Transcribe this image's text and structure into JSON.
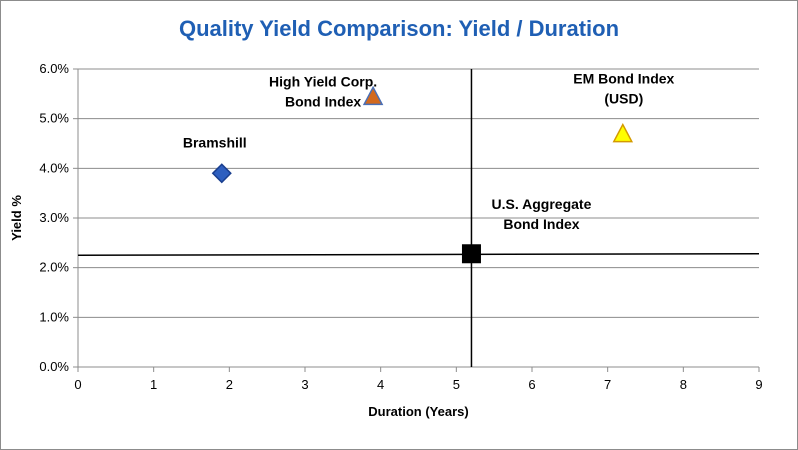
{
  "chart_data": {
    "type": "scatter",
    "title": "Quality Yield Comparison: Yield / Duration",
    "xlabel": "Duration (Years)",
    "ylabel": "Yield %",
    "xlim": [
      0,
      9
    ],
    "ylim": [
      0,
      6
    ],
    "x_ticks": [
      "0",
      "1",
      "2",
      "3",
      "4",
      "5",
      "6",
      "7",
      "8",
      "9"
    ],
    "y_ticks": [
      "0.0%",
      "1.0%",
      "2.0%",
      "3.0%",
      "4.0%",
      "5.0%",
      "6.0%"
    ],
    "grid": "horizontal",
    "reference_lines": {
      "vertical_x": 5.2,
      "horizontal_y": [
        2.25,
        2.28
      ]
    },
    "points": [
      {
        "label": "Bramshill",
        "x": 1.9,
        "y": 3.9,
        "marker": "diamond",
        "fill": "#2e5fbf",
        "stroke": "#1a3f8f",
        "label_lines": [
          "Bramshill"
        ]
      },
      {
        "label": "High Yield Corp. Bond Index",
        "x": 3.9,
        "y": 5.45,
        "marker": "triangle",
        "fill": "#d2691e",
        "stroke": "#4a6fb5",
        "label_lines": [
          "High Yield Corp.",
          "Bond Index"
        ]
      },
      {
        "label": "EM Bond Index (USD)",
        "x": 7.2,
        "y": 4.7,
        "marker": "triangle",
        "fill": "#ffff00",
        "stroke": "#d49a00",
        "label_lines": [
          "EM Bond Index",
          "(USD)"
        ]
      },
      {
        "label": "U.S. Aggregate Bond Index",
        "x": 5.2,
        "y": 2.28,
        "marker": "square",
        "fill": "#000000",
        "stroke": "#000000",
        "label_lines": [
          "U.S. Aggregate",
          "Bond Index"
        ]
      }
    ]
  }
}
